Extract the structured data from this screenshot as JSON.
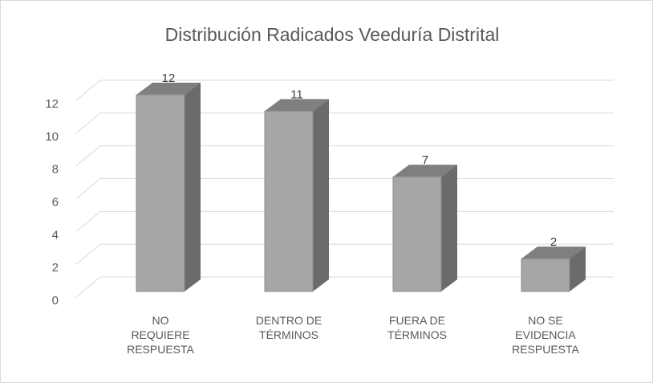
{
  "chart_data": {
    "type": "bar3d",
    "title": "Distribución Radicados Veeduría Distrital",
    "categories": [
      "NO REQUIERE RESPUESTA",
      "DENTRO DE TÉRMINOS",
      "FUERA DE TÉRMINOS",
      "NO SE EVIDENCIA RESPUESTA"
    ],
    "values": [
      12,
      11,
      7,
      2
    ],
    "color": "#a6a6a6",
    "ylim": [
      0,
      12
    ],
    "yticks": [
      0,
      2,
      4,
      6,
      8,
      10,
      12
    ],
    "grid": true
  }
}
